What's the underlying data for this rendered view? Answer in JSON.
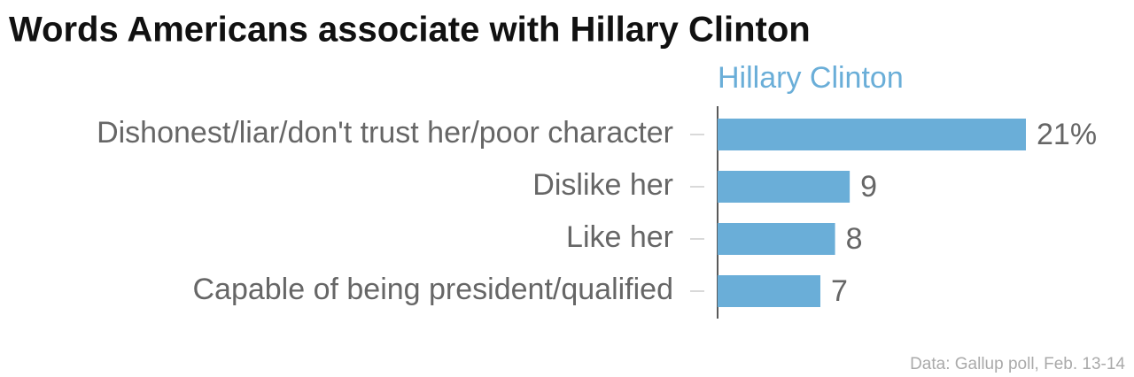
{
  "chart_data": {
    "type": "bar",
    "orientation": "horizontal",
    "title": "Words Americans associate with Hillary Clinton",
    "categories": [
      "Dishonest/liar/don't trust her/poor character",
      "Dislike her",
      "Like her",
      "Capable of being president/qualified"
    ],
    "series": [
      {
        "name": "Hillary Clinton",
        "color": "#6aaed8",
        "values": [
          21,
          9,
          8,
          7
        ],
        "value_labels": [
          "21%",
          "9",
          "8",
          "7"
        ]
      }
    ],
    "source": "Data: Gallup poll, Feb. 13-14"
  }
}
